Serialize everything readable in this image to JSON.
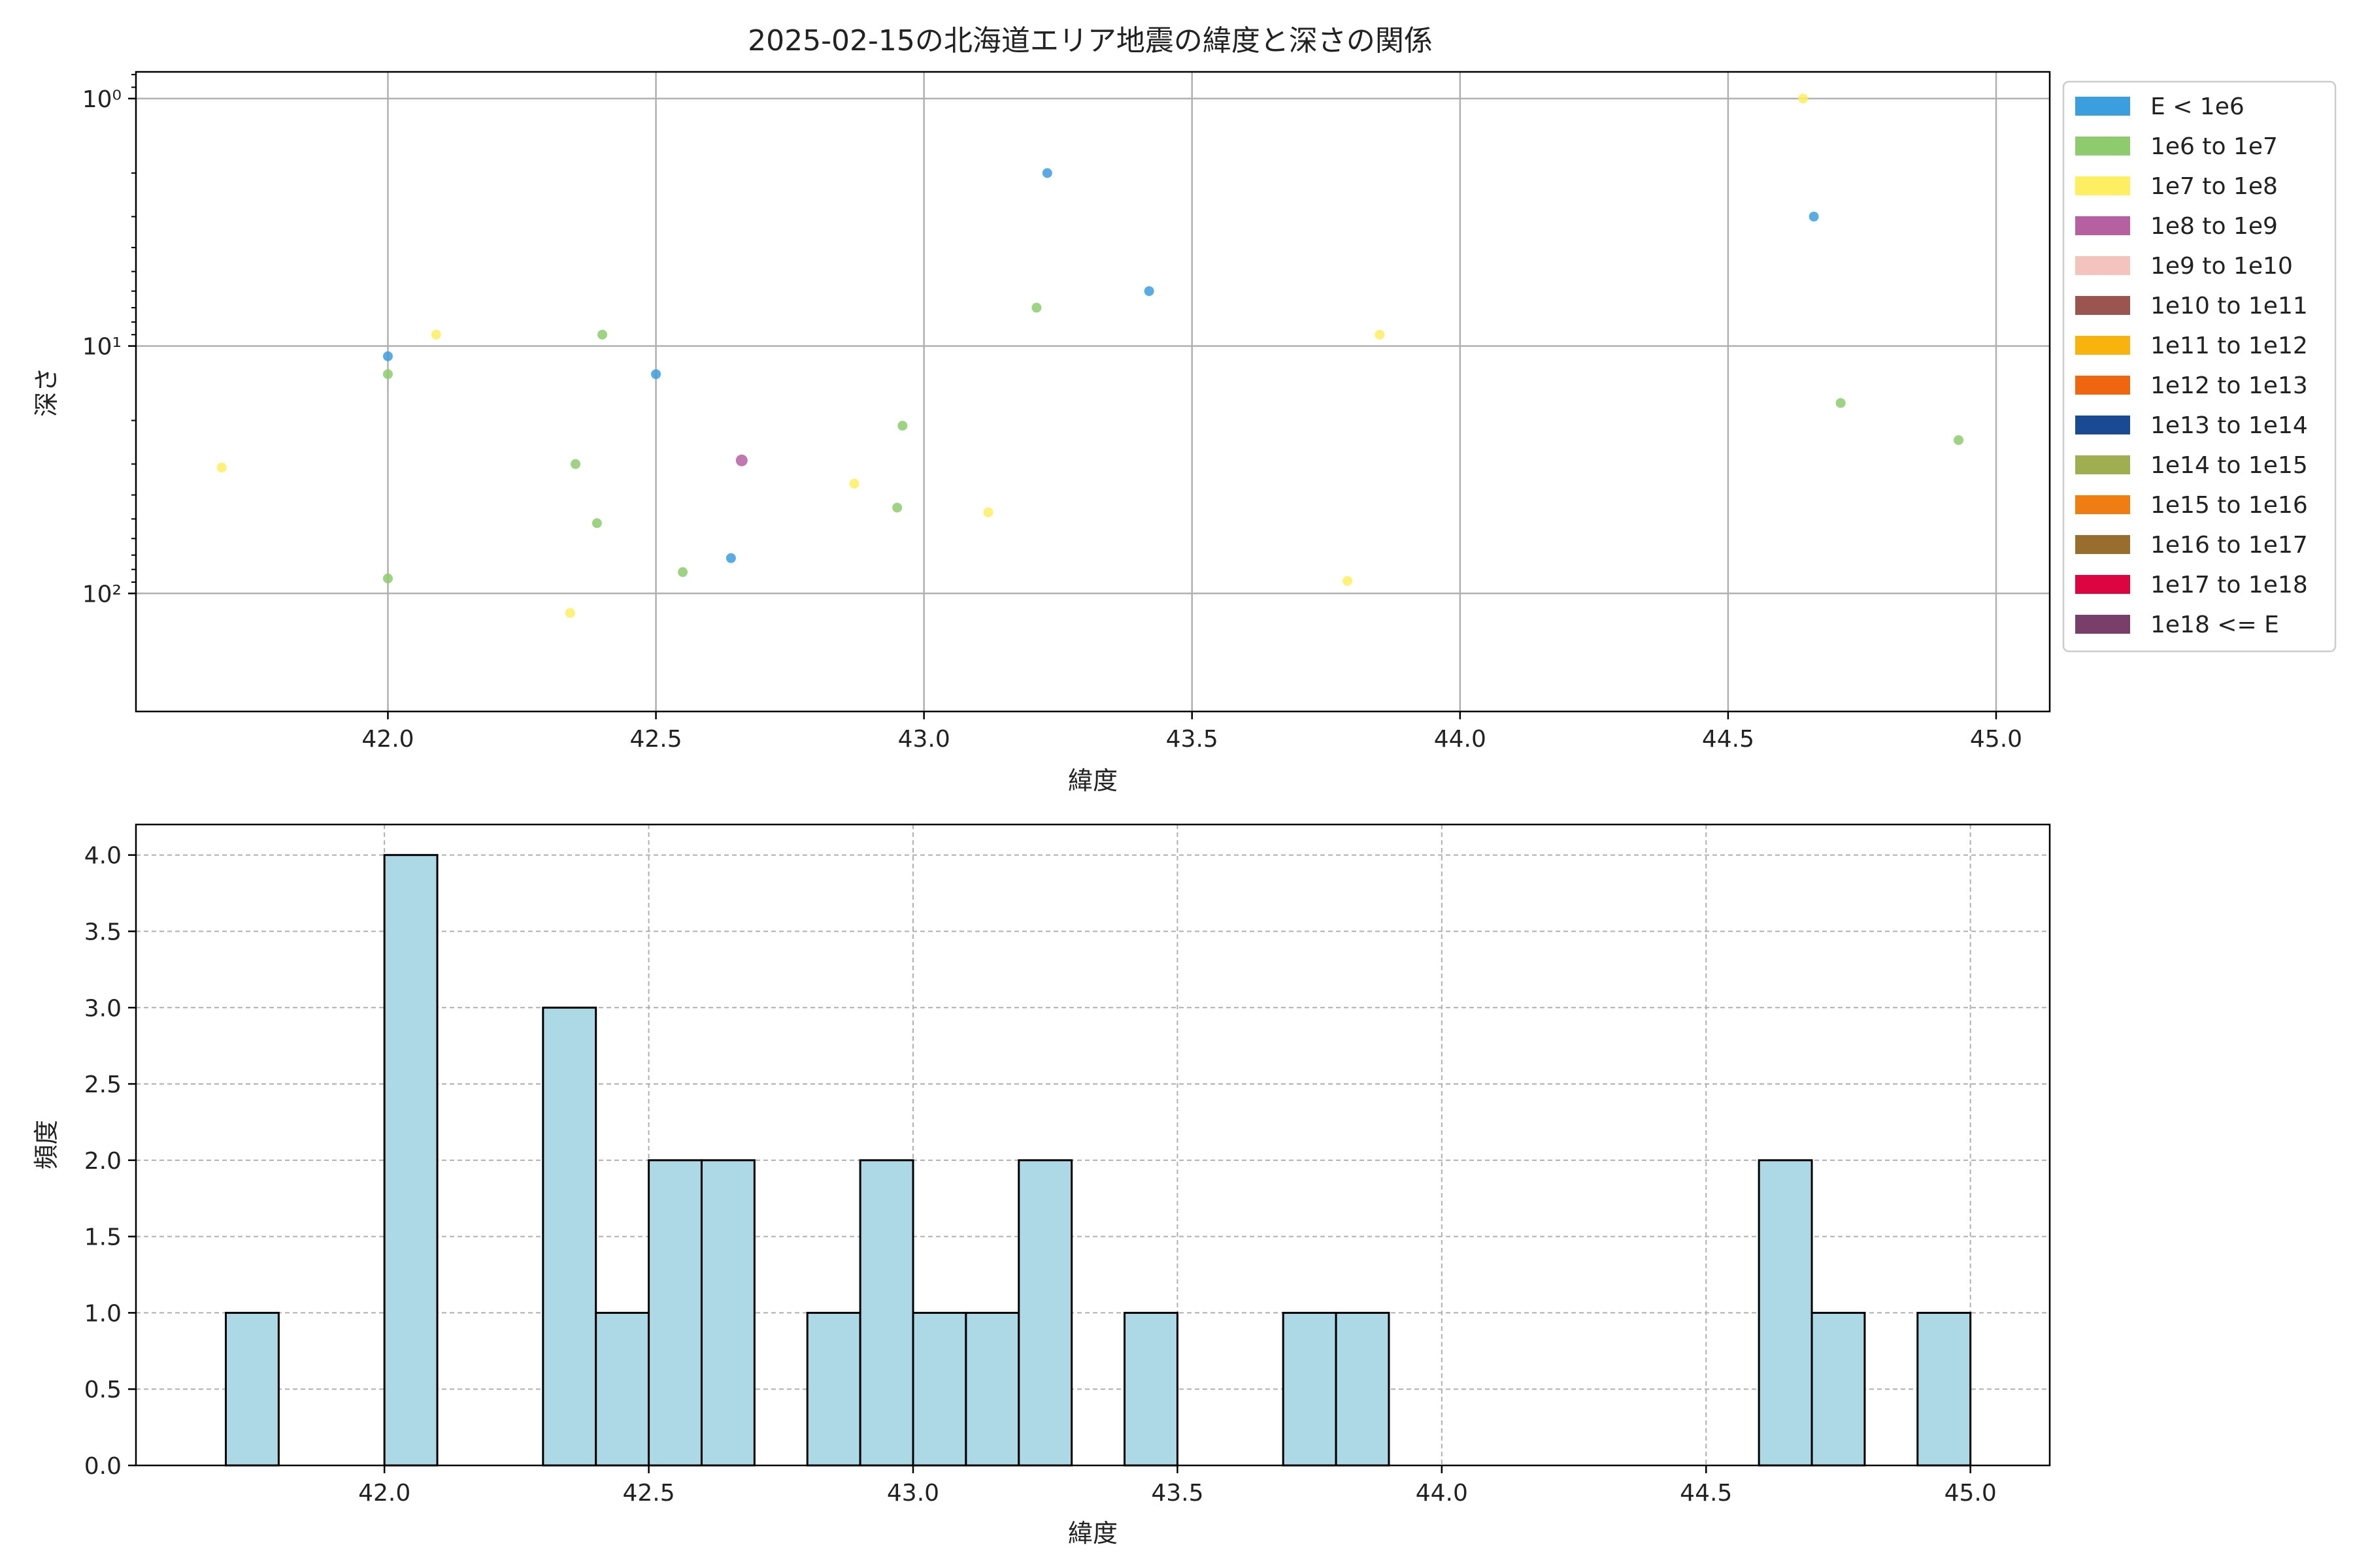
{
  "chart_data": [
    {
      "type": "scatter",
      "title": "2025-02-15の北海道エリア地震の緯度と深さの関係",
      "xlabel": "緯度",
      "ylabel": "深さ",
      "x_ticks": [
        "42.0",
        "42.5",
        "43.0",
        "43.5",
        "44.0",
        "44.5",
        "45.0"
      ],
      "y_ticks": [
        "10⁰",
        "10¹",
        "10²"
      ],
      "y_scale": "log",
      "y_inverted": true,
      "xlim": [
        41.53,
        45.1
      ],
      "ylim": [
        300,
        0.78
      ],
      "grid": true,
      "legend_position": "outside-right",
      "legend": [
        {
          "label": "E < 1e6",
          "color": "#3b9ede"
        },
        {
          "label": "1e6 to 1e7",
          "color": "#8dcb6e"
        },
        {
          "label": "1e7 to 1e8",
          "color": "#fdef61"
        },
        {
          "label": "1e8 to 1e9",
          "color": "#b660a2"
        },
        {
          "label": "1e9 to 1e10",
          "color": "#f4c3bd"
        },
        {
          "label": "1e10 to 1e11",
          "color": "#9b5450"
        },
        {
          "label": "1e11 to 1e12",
          "color": "#f8b30e"
        },
        {
          "label": "1e12 to 1e13",
          "color": "#ef6510"
        },
        {
          "label": "1e13 to 1e14",
          "color": "#1a4a93"
        },
        {
          "label": "1e14 to 1e15",
          "color": "#9eae50"
        },
        {
          "label": "1e15 to 1e16",
          "color": "#ef7d11"
        },
        {
          "label": "1e16 to 1e17",
          "color": "#986d2d"
        },
        {
          "label": "1e17 to 1e18",
          "color": "#dc0541"
        },
        {
          "label": "1e18 <= E",
          "color": "#7a3e6b"
        }
      ],
      "points": [
        {
          "x": 41.69,
          "y": 31,
          "series": 2
        },
        {
          "x": 42.0,
          "y": 11,
          "series": 0
        },
        {
          "x": 42.0,
          "y": 13,
          "series": 1
        },
        {
          "x": 42.0,
          "y": 87,
          "series": 1
        },
        {
          "x": 42.09,
          "y": 9,
          "series": 2
        },
        {
          "x": 42.34,
          "y": 120,
          "series": 2
        },
        {
          "x": 42.35,
          "y": 30,
          "series": 1
        },
        {
          "x": 42.39,
          "y": 52,
          "series": 1
        },
        {
          "x": 42.4,
          "y": 9,
          "series": 1
        },
        {
          "x": 42.5,
          "y": 13,
          "series": 0
        },
        {
          "x": 42.55,
          "y": 82,
          "series": 1
        },
        {
          "x": 42.64,
          "y": 72,
          "series": 0
        },
        {
          "x": 42.66,
          "y": 29,
          "series": 3
        },
        {
          "x": 42.87,
          "y": 36,
          "series": 2
        },
        {
          "x": 42.95,
          "y": 45,
          "series": 1
        },
        {
          "x": 42.96,
          "y": 21,
          "series": 1
        },
        {
          "x": 43.12,
          "y": 47,
          "series": 2
        },
        {
          "x": 43.21,
          "y": 7,
          "series": 1
        },
        {
          "x": 43.23,
          "y": 2,
          "series": 0
        },
        {
          "x": 43.42,
          "y": 6,
          "series": 0
        },
        {
          "x": 43.79,
          "y": 89,
          "series": 2
        },
        {
          "x": 43.85,
          "y": 9,
          "series": 2
        },
        {
          "x": 44.64,
          "y": 1,
          "series": 2
        },
        {
          "x": 44.66,
          "y": 3,
          "series": 0
        },
        {
          "x": 44.71,
          "y": 17,
          "series": 1
        },
        {
          "x": 44.93,
          "y": 24,
          "series": 1
        }
      ]
    },
    {
      "type": "bar",
      "subtype": "histogram",
      "xlabel": "緯度",
      "ylabel": "頻度",
      "x_ticks": [
        "42.0",
        "42.5",
        "43.0",
        "43.5",
        "44.0",
        "44.5",
        "45.0"
      ],
      "y_ticks": [
        "0.0",
        "0.5",
        "1.0",
        "1.5",
        "2.0",
        "2.5",
        "3.0",
        "3.5",
        "4.0"
      ],
      "xlim": [
        41.53,
        45.15
      ],
      "ylim": [
        0,
        4.2
      ],
      "grid": true,
      "bar_color": "#add8e6",
      "bin_width": 0.1,
      "bins": [
        {
          "start": 41.7,
          "count": 1
        },
        {
          "start": 42.0,
          "count": 4
        },
        {
          "start": 42.3,
          "count": 3
        },
        {
          "start": 42.4,
          "count": 1
        },
        {
          "start": 42.5,
          "count": 2
        },
        {
          "start": 42.6,
          "count": 2
        },
        {
          "start": 42.8,
          "count": 1
        },
        {
          "start": 42.9,
          "count": 2
        },
        {
          "start": 43.0,
          "count": 1
        },
        {
          "start": 43.1,
          "count": 1
        },
        {
          "start": 43.2,
          "count": 2
        },
        {
          "start": 43.4,
          "count": 1
        },
        {
          "start": 43.7,
          "count": 1
        },
        {
          "start": 43.8,
          "count": 1
        },
        {
          "start": 44.6,
          "count": 2
        },
        {
          "start": 44.7,
          "count": 1
        },
        {
          "start": 44.9,
          "count": 1
        }
      ]
    }
  ]
}
